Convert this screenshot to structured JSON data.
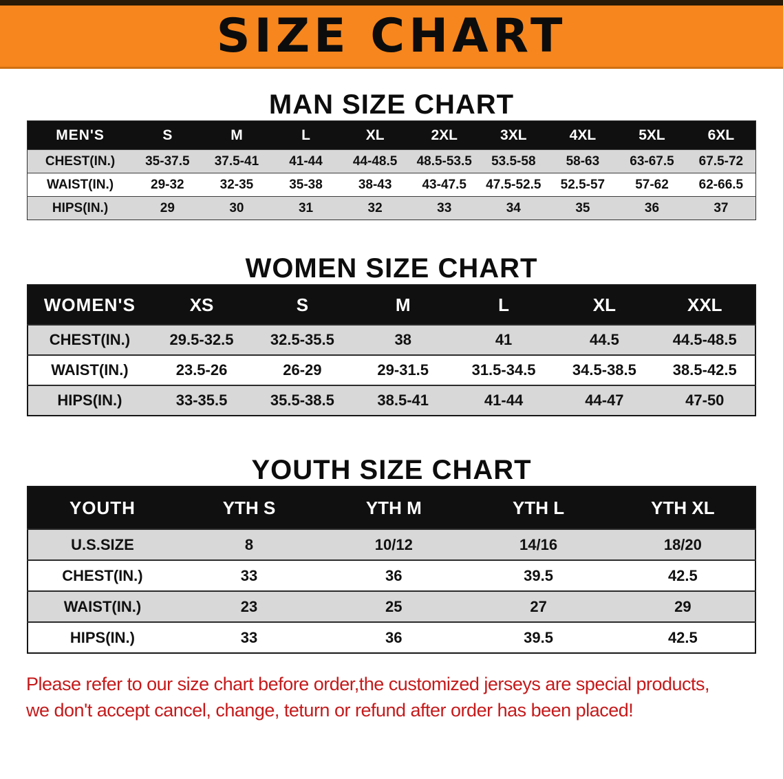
{
  "banner": {
    "title": "SIZE CHART"
  },
  "sections": {
    "men": {
      "heading": "MAN SIZE CHART"
    },
    "women": {
      "heading": "WOMEN SIZE CHART"
    },
    "youth": {
      "heading": "YOUTH SIZE CHART"
    }
  },
  "tables": {
    "men": {
      "header": [
        "MEN'S",
        "S",
        "M",
        "L",
        "XL",
        "2XL",
        "3XL",
        "4XL",
        "5XL",
        "6XL"
      ],
      "label_col_width": "14.5%",
      "rows": [
        {
          "label": "CHEST(IN.)",
          "values": [
            "35-37.5",
            "37.5-41",
            "41-44",
            "44-48.5",
            "48.5-53.5",
            "53.5-58",
            "58-63",
            "63-67.5",
            "67.5-72"
          ]
        },
        {
          "label": "WAIST(IN.)",
          "values": [
            "29-32",
            "32-35",
            "35-38",
            "38-43",
            "43-47.5",
            "47.5-52.5",
            "52.5-57",
            "57-62",
            "62-66.5"
          ]
        },
        {
          "label": "HIPS(IN.)",
          "values": [
            "29",
            "30",
            "31",
            "32",
            "33",
            "34",
            "35",
            "36",
            "37"
          ]
        }
      ]
    },
    "women": {
      "header": [
        "WOMEN'S",
        "XS",
        "S",
        "M",
        "L",
        "XL",
        "XXL"
      ],
      "label_col_width": "17%",
      "rows": [
        {
          "label": "CHEST(IN.)",
          "values": [
            "29.5-32.5",
            "32.5-35.5",
            "38",
            "41",
            "44.5",
            "44.5-48.5"
          ]
        },
        {
          "label": "WAIST(IN.)",
          "values": [
            "23.5-26",
            "26-29",
            "29-31.5",
            "31.5-34.5",
            "34.5-38.5",
            "38.5-42.5"
          ]
        },
        {
          "label": "HIPS(IN.)",
          "values": [
            "33-35.5",
            "35.5-38.5",
            "38.5-41",
            "41-44",
            "44-47",
            "47-50"
          ]
        }
      ]
    },
    "youth": {
      "header": [
        "YOUTH",
        "YTH S",
        "YTH M",
        "YTH L",
        "YTH XL"
      ],
      "label_col_width": "20.5%",
      "rows": [
        {
          "label": "U.S.SIZE",
          "values": [
            "8",
            "10/12",
            "14/16",
            "18/20"
          ]
        },
        {
          "label": "CHEST(IN.)",
          "values": [
            "33",
            "36",
            "39.5",
            "42.5"
          ]
        },
        {
          "label": "WAIST(IN.)",
          "values": [
            "23",
            "25",
            "27",
            "29"
          ]
        },
        {
          "label": "HIPS(IN.)",
          "values": [
            "33",
            "36",
            "39.5",
            "42.5"
          ]
        }
      ]
    }
  },
  "disclaimer": {
    "line1": "Please refer to our size chart before order,the customized jerseys are special products,",
    "line2": "we don't accept cancel, change, teturn or refund after order has been placed!",
    "color": "#c51a1b"
  },
  "colors": {
    "banner_background": "#f6861d",
    "table_header_background": "#101010",
    "shaded_row_background": "#d8d8d8",
    "disclaimer_text": "#c51a1b"
  }
}
